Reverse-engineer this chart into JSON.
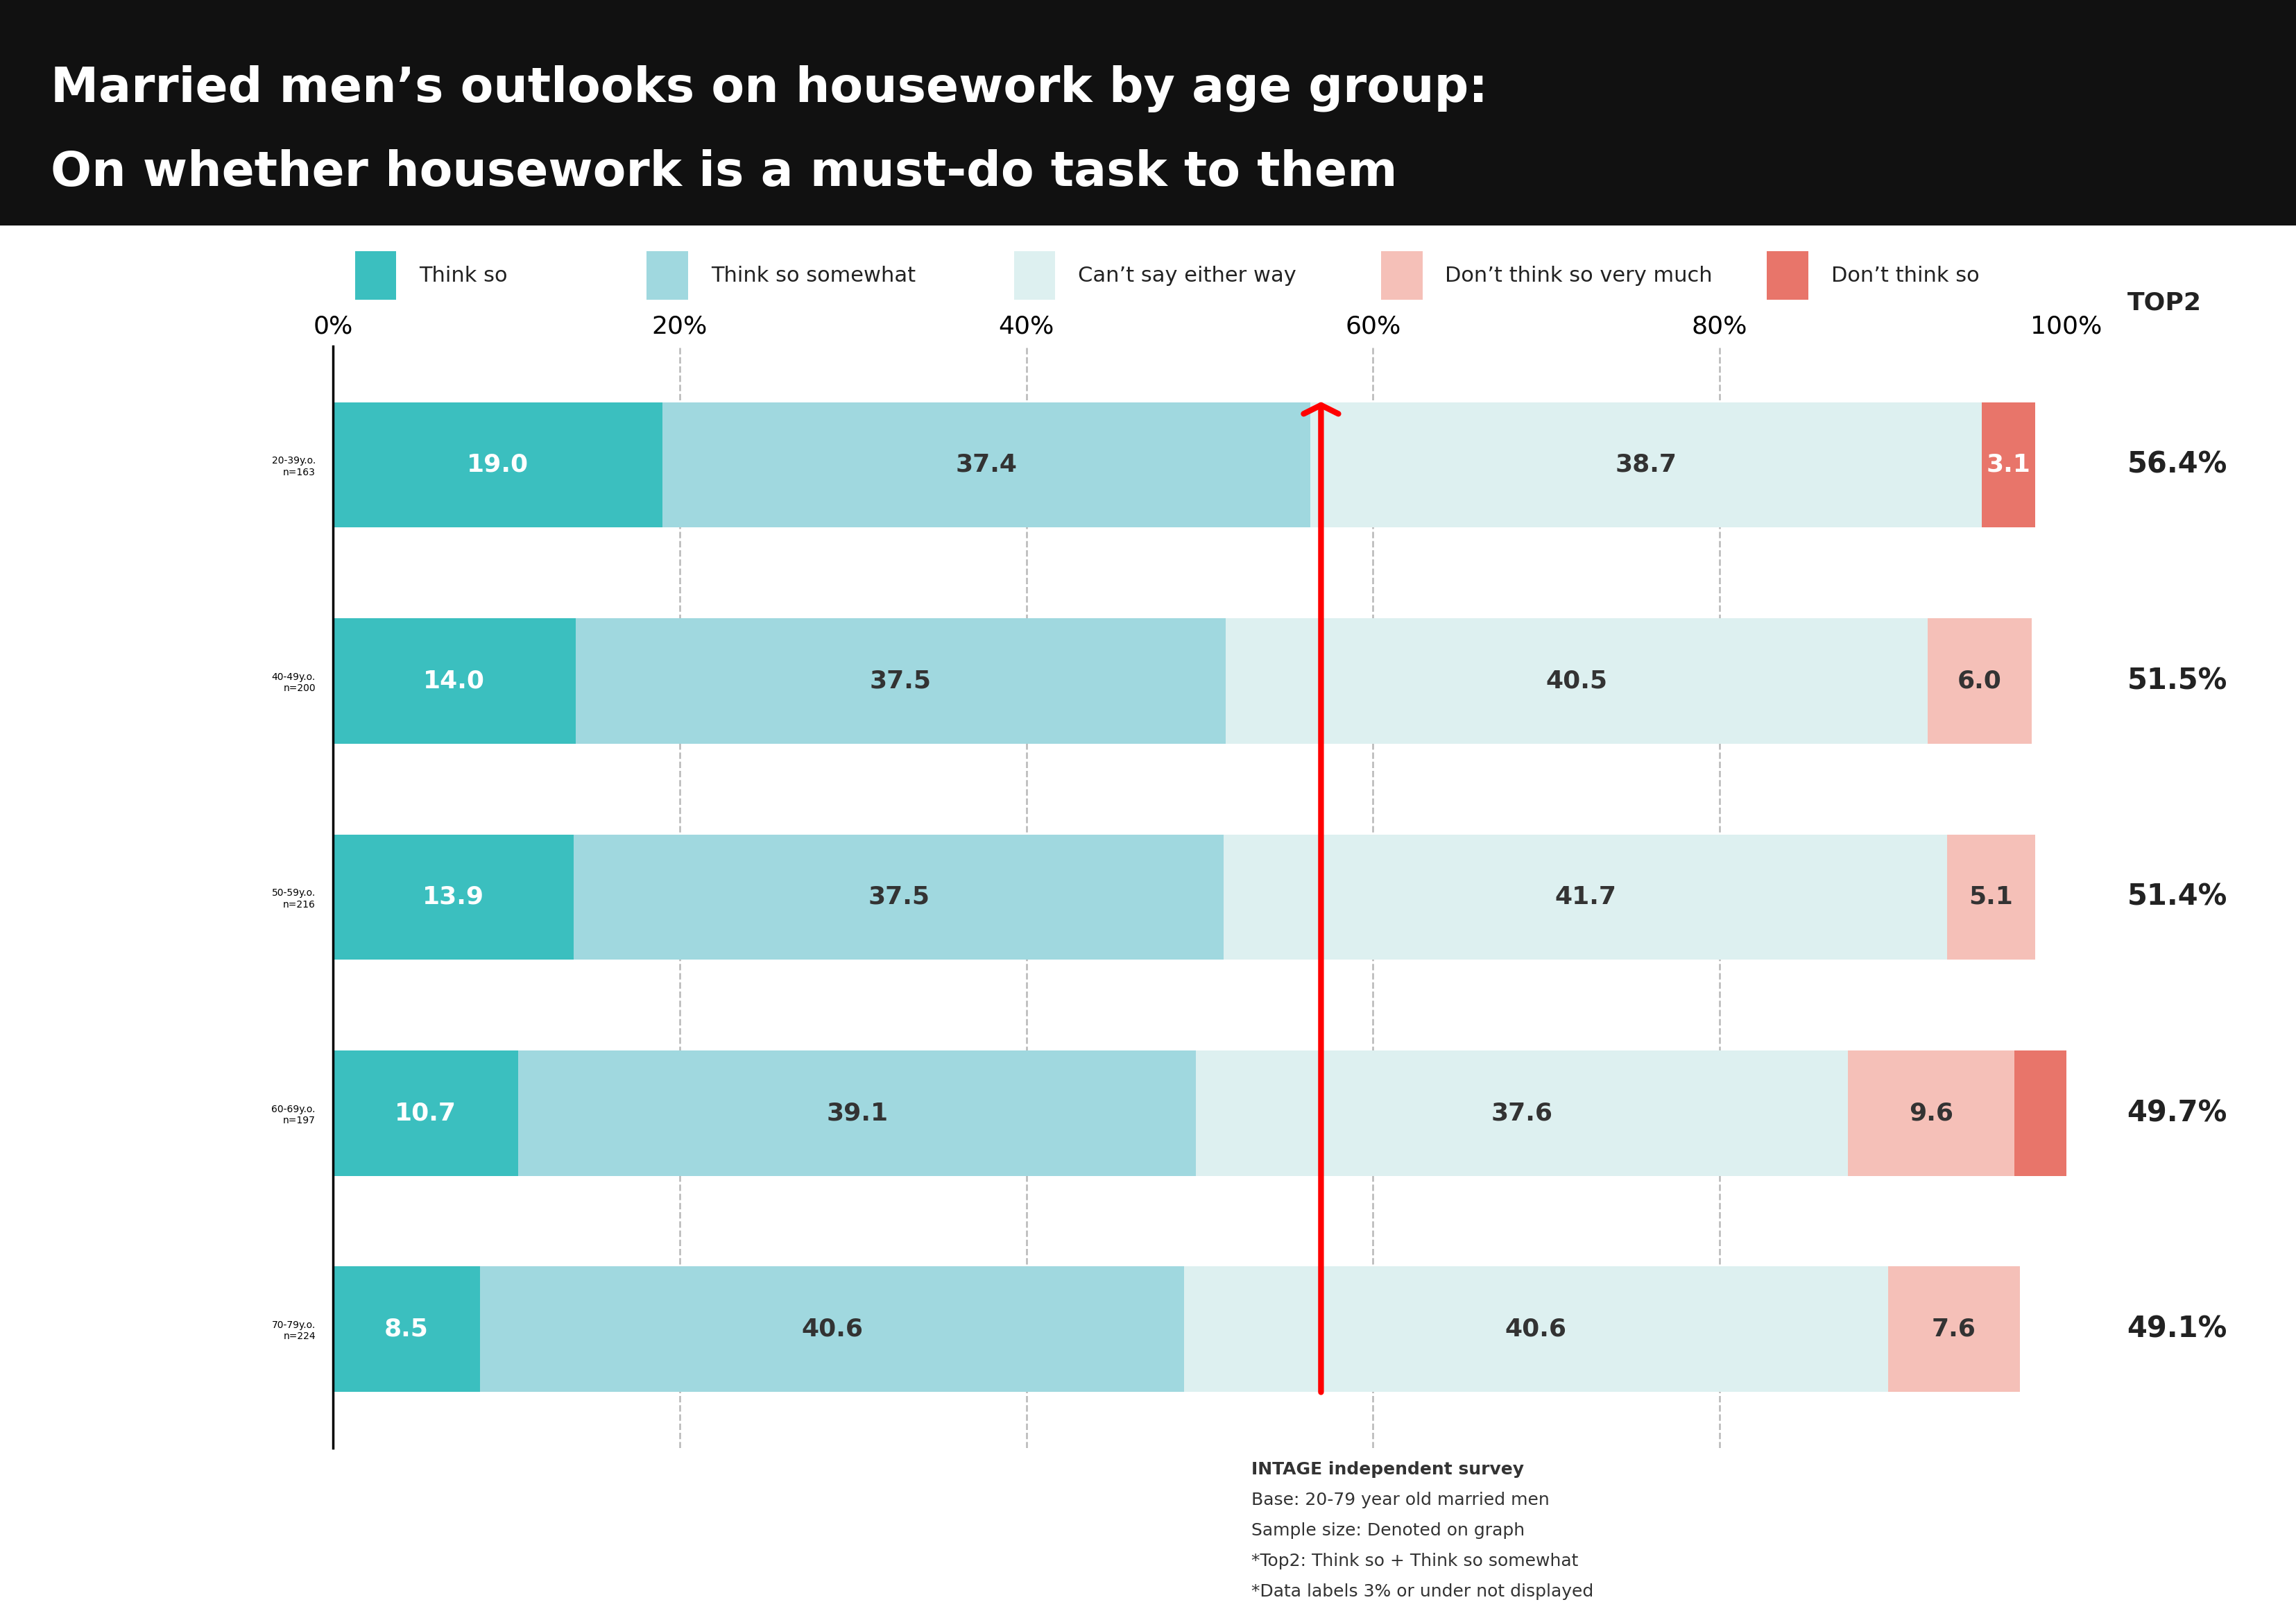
{
  "title_line1": "Married men’s outlooks on housework by age group:",
  "title_line2": "On whether housework is a must-do task to them",
  "categories": [
    "Think so",
    "Think so somewhat",
    "Can’t say either way",
    "Don’t think so very much",
    "Don’t think so"
  ],
  "colors": [
    "#3bbfbf",
    "#a0d8df",
    "#ddf0f0",
    "#f5c0b8",
    "#e8756a"
  ],
  "age_groups": [
    "20-39y.o.\nn=163",
    "40-49y.o.\nn=200",
    "50-59y.o.\nn=216",
    "60-69y.o.\nn=197",
    "70-79y.o.\nn=224"
  ],
  "data": [
    [
      19.0,
      37.4,
      38.7,
      0.0,
      3.1
    ],
    [
      14.0,
      37.5,
      40.5,
      6.0,
      0.0
    ],
    [
      13.9,
      37.5,
      41.7,
      5.1,
      0.0
    ],
    [
      10.7,
      39.1,
      37.6,
      9.6,
      3.0
    ],
    [
      8.5,
      40.6,
      40.6,
      7.6,
      0.0
    ]
  ],
  "top2": [
    "56.4%",
    "51.5%",
    "51.4%",
    "49.7%",
    "49.1%"
  ],
  "xlim": [
    0,
    100
  ],
  "xticks": [
    0,
    20,
    40,
    60,
    80,
    100
  ],
  "xtick_labels": [
    "0%",
    "20%",
    "40%",
    "60%",
    "80%",
    "100%"
  ],
  "background_color": "#ffffff",
  "title_bg_color": "#111111",
  "title_text_color": "#ffffff",
  "footnote_lines": [
    "INTAGE independent survey",
    "Base: 20-79 year old married men",
    "Sample size: Denoted on graph",
    "*Top2: Think so + Think so somewhat",
    "*Data labels 3% or under not displayed"
  ]
}
